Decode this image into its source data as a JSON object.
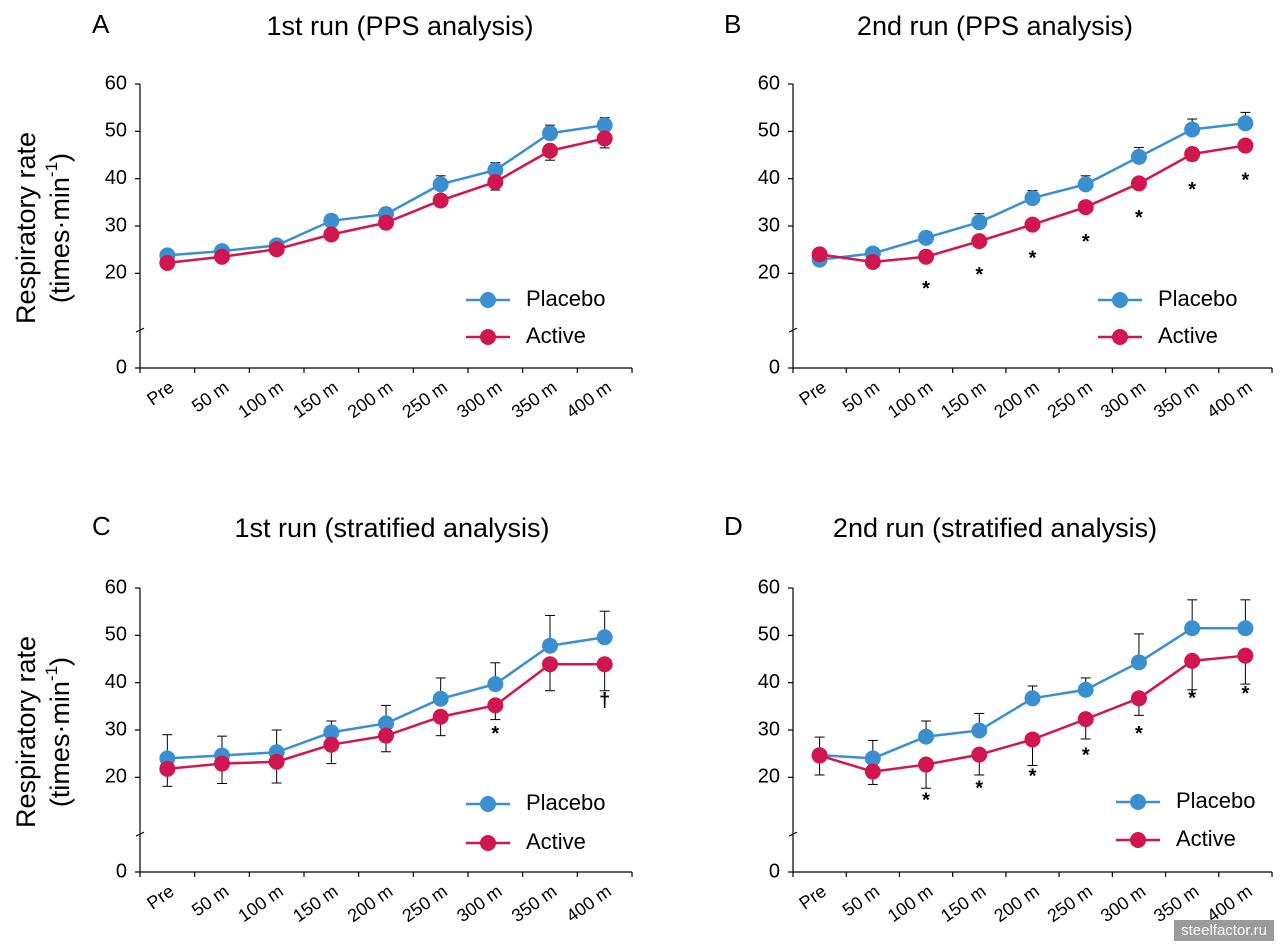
{
  "watermark": "steelfactor.ru",
  "colors": {
    "placebo": "#3a8fd1",
    "active": "#d1154f",
    "axis": "#000000"
  },
  "chart_data": [
    {
      "type": "line",
      "panel": "A",
      "title": "1st run (PPS analysis)",
      "ylabel_line1": "Respiratory rate",
      "ylabel_line2": "(times·min",
      "ylabel_sup": "-1",
      "ylabel_close": ")",
      "ylim": [
        0,
        60
      ],
      "yticks": [
        0,
        20,
        30,
        40,
        50,
        60
      ],
      "categories": [
        "Pre",
        "50 m",
        "100 m",
        "150 m",
        "200 m",
        "250 m",
        "300 m",
        "350 m",
        "400 m"
      ],
      "legend_position": "lower-right",
      "series": [
        {
          "name": "Placebo",
          "values": [
            23.8,
            24.7,
            25.9,
            31.1,
            32.5,
            38.8,
            41.8,
            49.6,
            51.3
          ],
          "error": [
            0.5,
            0.6,
            0.7,
            1.3,
            1.3,
            1.8,
            1.6,
            1.7,
            1.6
          ]
        },
        {
          "name": "Active",
          "values": [
            22.2,
            23.5,
            25.1,
            28.2,
            30.7,
            35.4,
            39.3,
            45.9,
            48.5
          ],
          "error": [
            0.6,
            0.6,
            1.2,
            0.8,
            1.0,
            1.3,
            1.7,
            2.0,
            2.0
          ]
        }
      ],
      "annotations": []
    },
    {
      "type": "line",
      "panel": "B",
      "title": "2nd run (PPS analysis)",
      "ylim": [
        0,
        60
      ],
      "yticks": [
        0,
        20,
        30,
        40,
        50,
        60
      ],
      "categories": [
        "Pre",
        "50 m",
        "100 m",
        "150 m",
        "200 m",
        "250 m",
        "300 m",
        "350 m",
        "400 m"
      ],
      "legend_position": "lower-right",
      "series": [
        {
          "name": "Placebo",
          "values": [
            22.9,
            24.2,
            27.5,
            30.8,
            35.9,
            38.8,
            44.6,
            50.4,
            51.7
          ],
          "error": [
            0.6,
            0.9,
            1.3,
            1.8,
            1.6,
            1.8,
            2.0,
            2.2,
            2.3
          ]
        },
        {
          "name": "Active",
          "values": [
            24.0,
            22.4,
            23.5,
            26.8,
            30.3,
            34.0,
            39.0,
            45.2,
            47.0
          ],
          "error": [
            0.4,
            0.5,
            0.4,
            0.5,
            0.6,
            0.9,
            1.2,
            1.4,
            1.0
          ]
        }
      ],
      "annotations": [
        {
          "category": "100 m",
          "text": "*",
          "y": 16.5
        },
        {
          "category": "150 m",
          "text": "*",
          "y": 19.5
        },
        {
          "category": "200 m",
          "text": "*",
          "y": 23.0
        },
        {
          "category": "250 m",
          "text": "*",
          "y": 26.5
        },
        {
          "category": "300 m",
          "text": "*",
          "y": 31.5
        },
        {
          "category": "350 m",
          "text": "*",
          "y": 37.5
        },
        {
          "category": "400 m",
          "text": "*",
          "y": 39.5
        }
      ]
    },
    {
      "type": "line",
      "panel": "C",
      "title": "1st run (stratified analysis)",
      "ylabel_line1": "Respiratory rate",
      "ylabel_line2": "(times·min",
      "ylabel_sup": "-1",
      "ylabel_close": ")",
      "ylim": [
        0,
        60
      ],
      "yticks": [
        0,
        20,
        30,
        40,
        50,
        60
      ],
      "categories": [
        "Pre",
        "50 m",
        "100 m",
        "150 m",
        "200 m",
        "250 m",
        "300 m",
        "350 m",
        "400 m"
      ],
      "legend_position": "lower-right",
      "series": [
        {
          "name": "Placebo",
          "values": [
            24.0,
            24.6,
            25.3,
            29.5,
            31.4,
            36.6,
            39.7,
            47.8,
            49.6
          ],
          "error": [
            5.0,
            4.1,
            4.7,
            2.4,
            3.8,
            4.4,
            4.5,
            6.4,
            5.5
          ]
        },
        {
          "name": "Active",
          "values": [
            21.8,
            22.9,
            23.3,
            26.9,
            28.8,
            32.8,
            35.2,
            43.9,
            43.9
          ],
          "error": [
            3.7,
            4.2,
            4.5,
            4.0,
            3.4,
            4.0,
            3.0,
            5.6,
            5.6
          ]
        }
      ],
      "annotations": [
        {
          "category": "300 m",
          "text": "*",
          "y": 29.0
        },
        {
          "category": "400 m",
          "text": "†",
          "y": 36.0
        }
      ]
    },
    {
      "type": "line",
      "panel": "D",
      "title": "2nd run (stratified analysis)",
      "ylim": [
        0,
        60
      ],
      "yticks": [
        0,
        20,
        30,
        40,
        50,
        60
      ],
      "categories": [
        "Pre",
        "50 m",
        "100 m",
        "150 m",
        "200 m",
        "250 m",
        "300 m",
        "350 m",
        "400 m"
      ],
      "legend_position": "lower-right",
      "series": [
        {
          "name": "Placebo",
          "values": [
            24.7,
            24.0,
            28.6,
            29.9,
            36.7,
            38.5,
            44.3,
            51.5,
            51.5
          ],
          "error": [
            3.8,
            3.8,
            3.3,
            3.6,
            2.6,
            2.5,
            6.0,
            6.0,
            6.0
          ]
        },
        {
          "name": "Active",
          "values": [
            24.6,
            21.2,
            22.7,
            24.8,
            28.0,
            32.3,
            36.7,
            44.6,
            45.7
          ],
          "error": [
            4.1,
            2.7,
            5.0,
            4.3,
            5.5,
            4.2,
            3.6,
            6.1,
            6.0
          ]
        }
      ],
      "annotations": [
        {
          "category": "100 m",
          "text": "*",
          "y": 15.0
        },
        {
          "category": "150 m",
          "text": "*",
          "y": 17.5
        },
        {
          "category": "200 m",
          "text": "*",
          "y": 20.0
        },
        {
          "category": "250 m",
          "text": "*",
          "y": 24.5
        },
        {
          "category": "300 m",
          "text": "*",
          "y": 29.0
        },
        {
          "category": "350 m",
          "text": "*",
          "y": 36.5
        },
        {
          "category": "400 m",
          "text": "*",
          "y": 37.5
        }
      ]
    }
  ]
}
